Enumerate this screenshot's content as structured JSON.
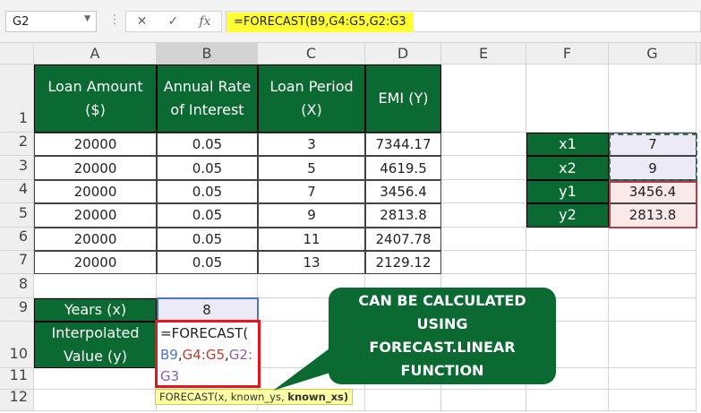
{
  "name_box": "G2",
  "formula_bar": "=FORECAST(B9,G4:G5,G2:G3",
  "columns": [
    "A",
    "B",
    "C",
    "D",
    "E",
    "F",
    "G"
  ],
  "rows": [
    "1",
    "2",
    "3",
    "4",
    "5",
    "6",
    "7",
    "8",
    "9",
    "10",
    "11",
    "12"
  ],
  "cells": {
    "A1": "Loan Amount ($)",
    "B1": "Annual Rate of Interest",
    "C1": "Loan Period (X)",
    "D1": "EMI (Y)",
    "A2": "20000",
    "B2": "0.05",
    "C2": "3",
    "D2": "7344.17",
    "A3": "20000",
    "B3": "0.05",
    "C3": "5",
    "D3": "4619.5",
    "A4": "20000",
    "B4": "0.05",
    "C4": "7",
    "D4": "3456.4",
    "A5": "20000",
    "B5": "0.05",
    "C5": "9",
    "D5": "2813.8",
    "A6": "20000",
    "B6": "0.05",
    "C6": "11",
    "D6": "2407.78",
    "A7": "20000",
    "B7": "0.05",
    "C7": "13",
    "D7": "2129.12",
    "A9": "Years (x)",
    "B9": "8",
    "A10": "Interpolated Value (y)",
    "F2": "x1",
    "G2": "7",
    "F3": "x2",
    "G3": "9",
    "F4": "y1",
    "G4": "3456.4",
    "F5": "y2",
    "G5": "2813.8"
  },
  "edit": {
    "start": "=FORECAST(",
    "arg1": "B9",
    "sep1": ",",
    "arg2": "G4:G5",
    "sep2": ",",
    "arg3a": "G2:",
    "arg3b": "G3"
  },
  "tooltip": {
    "text": "FORECAST(x, known_ys, ",
    "bold": "known_xs)"
  },
  "callout": [
    "CAN BE CALCULATED",
    "USING",
    "FORECAST.LINEAR",
    "FUNCTION"
  ],
  "colors": {
    "green": "#0b6a32",
    "ref1": "#4b76c5",
    "ref2": "#c0392b",
    "ref3": "#8a5bb0",
    "highlight": "#ffff33"
  }
}
